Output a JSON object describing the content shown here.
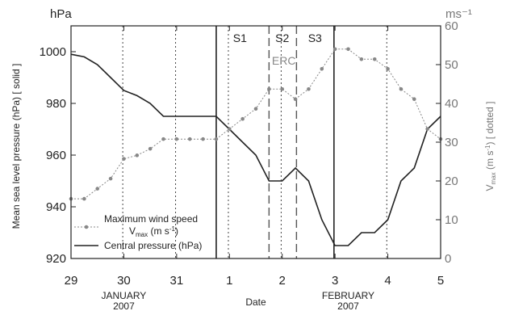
{
  "chart_data": {
    "type": "line",
    "x_tick_labels": [
      "29",
      "30",
      "31",
      "1",
      "2",
      "3",
      "4",
      "5"
    ],
    "x_tick_values": [
      0,
      1,
      2,
      3,
      4,
      5,
      6,
      7
    ],
    "x_range": [
      0,
      7
    ],
    "month_labels": [
      {
        "month": "JANUARY",
        "year": "2007",
        "at": 1
      },
      {
        "month": "FEBRUARY",
        "year": "2007",
        "at": 5.25
      }
    ],
    "xlabel": "Date",
    "y_left": {
      "unit_label": "hPa",
      "label": "Mean sea level pressure (hPa) [ solid ]",
      "range": [
        920,
        1010
      ],
      "ticks": [
        920,
        940,
        960,
        980,
        1000
      ]
    },
    "y_right": {
      "unit_label": "ms⁻¹",
      "label": "V<sub>max</sub> (m s<sup>-1</sup>) [ dotted ]",
      "label_parts": {
        "pre": "V",
        "sub": "max",
        "mid": " (m s",
        "sup": "-1",
        "post": ") [ dotted ]"
      },
      "range": [
        0,
        60
      ],
      "ticks": [
        0,
        10,
        20,
        30,
        40,
        50,
        60
      ]
    },
    "series": [
      {
        "name": "Central pressure (hPa)",
        "axis": "left",
        "style": "solid",
        "color": "#222222",
        "x": [
          0,
          0.25,
          0.5,
          0.75,
          1,
          1.25,
          1.5,
          1.75,
          2,
          2.25,
          2.5,
          2.75,
          3,
          3.25,
          3.5,
          3.75,
          4,
          4.25,
          4.5,
          4.75,
          5,
          5.25,
          5.5,
          5.75,
          6,
          6.25,
          6.5,
          6.75,
          7
        ],
        "values": [
          999,
          998,
          995,
          990,
          985,
          983,
          980,
          975,
          975,
          975,
          975,
          975,
          970,
          965,
          960,
          950,
          950,
          955,
          950,
          935,
          925,
          925,
          930,
          930,
          935,
          950,
          955,
          970,
          975
        ]
      },
      {
        "name": "Maximum wind speed",
        "name_line2": {
          "pre": "V",
          "sub": "max",
          "mid": " (m s",
          "sup": "-1",
          "post": ")"
        },
        "axis": "right",
        "style": "dotted",
        "color": "#888888",
        "x": [
          0,
          0.25,
          0.5,
          0.75,
          1,
          1.25,
          1.5,
          1.75,
          2,
          2.25,
          2.5,
          2.75,
          3,
          3.25,
          3.5,
          3.75,
          4,
          4.25,
          4.5,
          4.75,
          5,
          5.25,
          5.5,
          5.75,
          6,
          6.25,
          6.5,
          6.75,
          7
        ],
        "values": [
          15.4,
          15.4,
          18,
          20.6,
          25.7,
          26.6,
          28.3,
          30.8,
          30.8,
          30.8,
          30.8,
          30.8,
          33.4,
          36,
          38.6,
          43.7,
          43.7,
          41.1,
          43.7,
          48.9,
          54,
          54,
          51.4,
          51.4,
          48.9,
          43.7,
          41.1,
          33.4,
          30.8
        ]
      }
    ],
    "vertical_lines": [
      {
        "x": 2.75,
        "style": "solid"
      },
      {
        "x": 4.98,
        "style": "solid"
      },
      {
        "x": 3.75,
        "style": "dashed"
      },
      {
        "x": 4.27,
        "style": "dashed"
      },
      {
        "x": 0.98,
        "style": "dotted"
      },
      {
        "x": 1.98,
        "style": "dotted"
      },
      {
        "x": 2.98,
        "style": "dotted"
      },
      {
        "x": 3.98,
        "style": "dotted"
      },
      {
        "x": 5.98,
        "style": "dotted"
      }
    ],
    "regions": [
      {
        "label": "S1",
        "x": 3.2
      },
      {
        "label": "S2",
        "x": 4.0
      },
      {
        "label": "S3",
        "x": 4.62
      }
    ],
    "annotation": {
      "text": "ERC",
      "x": 4.03,
      "y_right": 51,
      "color": "#888888"
    },
    "legend_position": "bottom-left",
    "grid": false
  }
}
